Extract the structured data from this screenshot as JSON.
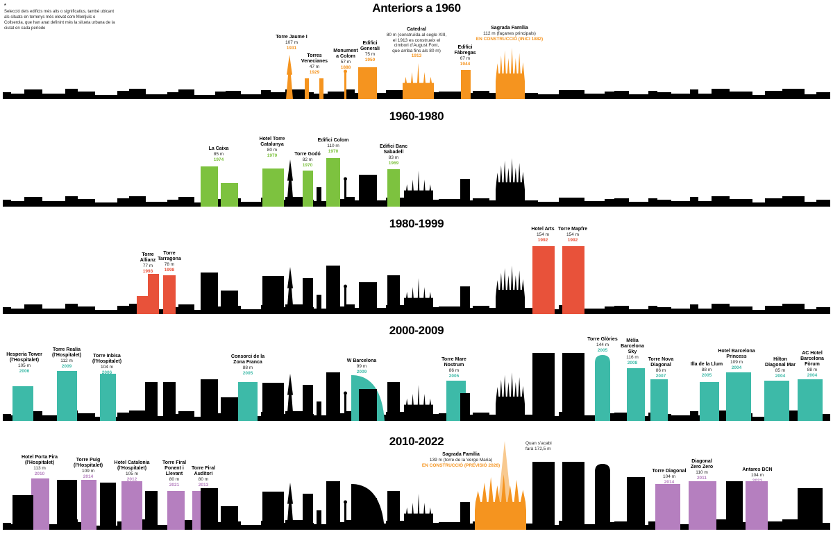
{
  "intro": {
    "marker": "*",
    "text": "Selecció dels edificis més alts o significatius, també ubicant als situats en terrenys més elevat com Montjuïc o Collserola, que han anat definint més la silueta urbana de la ciutat en cada període"
  },
  "colors": {
    "anteriors": "#f5941f",
    "1960": "#7dc23f",
    "1980": "#e8523a",
    "2000": "#3dbaa8",
    "2010": "#b57fbf",
    "sagrada_planned": "#f8c98f",
    "skyline": "#000000"
  },
  "panels": [
    {
      "title": "Anteriors a 1960",
      "buildings": [
        {
          "name": "Torre Jaume I",
          "height": "107 m",
          "year": "1931"
        },
        {
          "name": "Torres\nVenecianes",
          "height": "47 m",
          "year": "1929"
        },
        {
          "name": "Monument\na Colom",
          "height": "57 m",
          "year": "1888"
        },
        {
          "name": "Edifici\nGenerali",
          "height": "75 m",
          "year": "1950"
        },
        {
          "name": "Catedral",
          "height": "80 m (construïda al segle XIII,\nel 1913 es construeix el\ncimbori d'August Font,\nque arriba fins als 80 m)",
          "year": "1913"
        },
        {
          "name": "Edifici\nFàbregas",
          "height": "67 m",
          "year": "1944"
        },
        {
          "name": "Sagrada Família",
          "height": "112 m (façanes principals)",
          "year": "EN CONSTRUCCIÓ\n(INICI 1882)"
        }
      ]
    },
    {
      "title": "1960-1980",
      "buildings": [
        {
          "name": "La Caixa",
          "height": "85 m",
          "year": "1974"
        },
        {
          "name": "Hotel Torre\nCatalunya",
          "height": "80 m",
          "year": "1970"
        },
        {
          "name": "Torre Godó",
          "height": "82 m",
          "year": "1970"
        },
        {
          "name": "Edifici Colom",
          "height": "110 m",
          "year": "1970"
        },
        {
          "name": "Edifici Banc\nSabadell",
          "height": "83 m",
          "year": "1969"
        }
      ]
    },
    {
      "title": "1980-1999",
      "buildings": [
        {
          "name": "Torre\nAllianz",
          "height": "77 m",
          "year": "1993"
        },
        {
          "name": "Torre\nTarragona",
          "height": "78 m",
          "year": "1998"
        },
        {
          "name": "Hotel Arts",
          "height": "154 m",
          "year": "1992"
        },
        {
          "name": "Torre Mapfre",
          "height": "154 m",
          "year": "1992"
        }
      ]
    },
    {
      "title": "2000-2009",
      "buildings": [
        {
          "name": "Hesperia Tower\n(l'Hospitalet)",
          "height": "105 m",
          "year": "2006"
        },
        {
          "name": "Torre Realia\n(l'Hospitalet)",
          "height": "112 m",
          "year": "2009"
        },
        {
          "name": "Torre Inbisa\n(l'Hospitalet)",
          "height": "104 m",
          "year": "2006"
        },
        {
          "name": "Consorci de la\nZona Franca",
          "height": "88 m",
          "year": "2005"
        },
        {
          "name": "W Barcelona",
          "height": "99 m",
          "year": "2009"
        },
        {
          "name": "Torre Mare\nNostrum",
          "height": "86 m",
          "year": "2005"
        },
        {
          "name": "Torre Glòries",
          "height": "144 m",
          "year": "2005"
        },
        {
          "name": "Mèlia\nBarcelona\nSky",
          "height": "116 m",
          "year": "2008"
        },
        {
          "name": "Torre Nova\nDiagonal",
          "height": "86 m",
          "year": "2007"
        },
        {
          "name": "Illa de la Llum",
          "height": "88 m",
          "year": "2005"
        },
        {
          "name": "Hotel Barcelona\nPrincess",
          "height": "109 m",
          "year": "2004"
        },
        {
          "name": "Hilton\nDiagonal Mar",
          "height": "85 m",
          "year": "2004"
        },
        {
          "name": "AC Hotel\nBarcelona\nFòrum",
          "height": "88 m",
          "year": "2004"
        }
      ]
    },
    {
      "title": "2010-2022",
      "buildings": [
        {
          "name": "Hotel Porta Fira\n(l'Hospitalet)",
          "height": "113 m",
          "year": "2010"
        },
        {
          "name": "Torre Puig\n(l'Hospitalet)",
          "height": "109 m",
          "year": "2014"
        },
        {
          "name": "Hotel Catalonia\n(l'Hospitalet)",
          "height": "105 m",
          "year": "2012"
        },
        {
          "name": "Torre Firal\nPonent i\nLlevant",
          "height": "80 m",
          "year": "2021"
        },
        {
          "name": "Torre Firal\nAuditori",
          "height": "80 m",
          "year": "2013"
        },
        {
          "name": "Sagrada Família",
          "height": "139 m (torre de la Verge Maria)",
          "year": "EN CONSTRUCCIÓ\n(PREVISIÓ 2026)"
        },
        {
          "name": "Torre Diagonal",
          "height": "104 m",
          "year": "2014"
        },
        {
          "name": "Diagonal\nZero Zero",
          "height": "110 m",
          "year": "2011"
        },
        {
          "name": "Antares BCN",
          "height": "104 m",
          "year": "2021"
        }
      ],
      "annotation": "Quan s'acabi\nfarà 172,5 m"
    }
  ]
}
